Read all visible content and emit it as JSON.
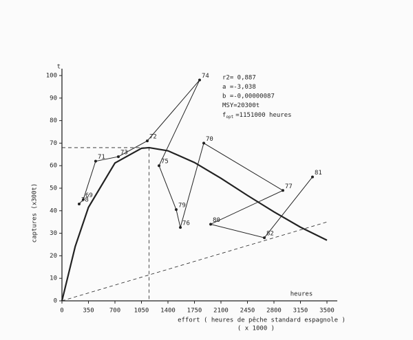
{
  "chart_data": {
    "type": "line",
    "yunit": "t",
    "ylabel": "captures (x300t)",
    "xunit": "heures",
    "xlabel": "effort ( heures de pêche standard espagnole )",
    "xlabel2": "( x 1000 )",
    "annotations": [
      "r2= 0,887",
      "a =-3,038",
      "b =-0,00000087",
      "MSY=20300t"
    ],
    "fopt": {
      "symbol": "f",
      "subscript": "opt",
      "text": "=1151000 heures"
    },
    "xlim": [
      0,
      3500
    ],
    "ylim": [
      0,
      100
    ],
    "xticks": [
      0,
      350,
      700,
      1050,
      1400,
      1750,
      2100,
      2450,
      2800,
      3150,
      3500
    ],
    "yticks": [
      0,
      10,
      20,
      30,
      40,
      50,
      60,
      70,
      80,
      90,
      100
    ],
    "color": "#222222",
    "trajectory": {
      "labels": [
        "78",
        "69",
        "71",
        "73",
        "72",
        "74",
        "75",
        "79",
        "76",
        "70",
        "77",
        "80",
        "82",
        "81"
      ],
      "x": [
        227,
        282,
        445,
        745,
        1127,
        1818,
        1282,
        1509,
        1564,
        1873,
        2918,
        1964,
        2673,
        3309
      ],
      "values": [
        43,
        45,
        62,
        64,
        71,
        98,
        60,
        40.5,
        32.6,
        70,
        49,
        34,
        28,
        55
      ]
    },
    "model": {
      "x": [
        0,
        175,
        350,
        700,
        1050,
        1151,
        1400,
        1750,
        2100,
        2450,
        2800,
        3150,
        3500
      ],
      "values": [
        0,
        24.1,
        41.5,
        61.2,
        67.7,
        68,
        66.6,
        61.4,
        54.4,
        46.8,
        39.5,
        32.7,
        26.9
      ]
    },
    "guides": [
      {
        "x": [
          0,
          1151,
          1151
        ],
        "values": [
          68,
          68,
          0
        ]
      },
      {
        "x": [
          0,
          3500
        ],
        "values": [
          0,
          35
        ]
      }
    ]
  }
}
